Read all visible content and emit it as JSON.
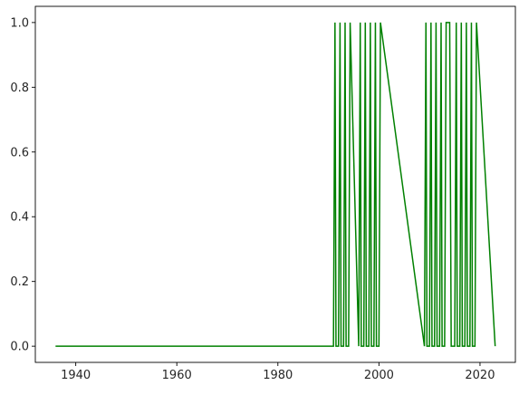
{
  "chart_data": {
    "type": "line",
    "title": "",
    "xlabel": "",
    "ylabel": "",
    "xlim": [
      1932,
      2027
    ],
    "ylim": [
      -0.05,
      1.05
    ],
    "grid": false,
    "legend": "none",
    "x_ticks": [
      1940,
      1960,
      1980,
      2000,
      2020
    ],
    "x_tick_labels": [
      "1940",
      "1960",
      "1980",
      "2000",
      "2020"
    ],
    "y_ticks": [
      0.0,
      0.2,
      0.4,
      0.6,
      0.8,
      1.0
    ],
    "y_tick_labels": [
      "0.0",
      "0.2",
      "0.4",
      "0.6",
      "0.8",
      "1.0"
    ],
    "series": [
      {
        "color": "#008000",
        "x": [
          1936,
          1991,
          1991.3,
          1991.5,
          1992,
          1992.3,
          1992.5,
          1993,
          1993.3,
          1993.5,
          1994,
          1994.3,
          1996,
          1996.3,
          1996.5,
          1997,
          1997.3,
          1997.5,
          1998,
          1998.3,
          1998.5,
          1999,
          1999.3,
          1999.5,
          2000,
          2000.3,
          2009,
          2009.3,
          2009.5,
          2010,
          2010.3,
          2010.5,
          2011,
          2011.3,
          2011.5,
          2012,
          2012.3,
          2012.5,
          2013,
          2013.3,
          2014,
          2014.3,
          2015,
          2015.3,
          2015.5,
          2016,
          2016.3,
          2016.5,
          2017,
          2017.3,
          2017.5,
          2018,
          2018.3,
          2018.5,
          2019,
          2019.3,
          2023
        ],
        "y": [
          0,
          0,
          1,
          0,
          0,
          1,
          0,
          0,
          1,
          0,
          0,
          1,
          0,
          1,
          0,
          0,
          1,
          0,
          0,
          1,
          0,
          0,
          1,
          0,
          0,
          1,
          0,
          1,
          0,
          0,
          1,
          0,
          0,
          1,
          0,
          0,
          1,
          0,
          0,
          1,
          1,
          0,
          0,
          1,
          0,
          0,
          1,
          0,
          0,
          1,
          0,
          0,
          1,
          0,
          0,
          1,
          0
        ]
      }
    ]
  }
}
